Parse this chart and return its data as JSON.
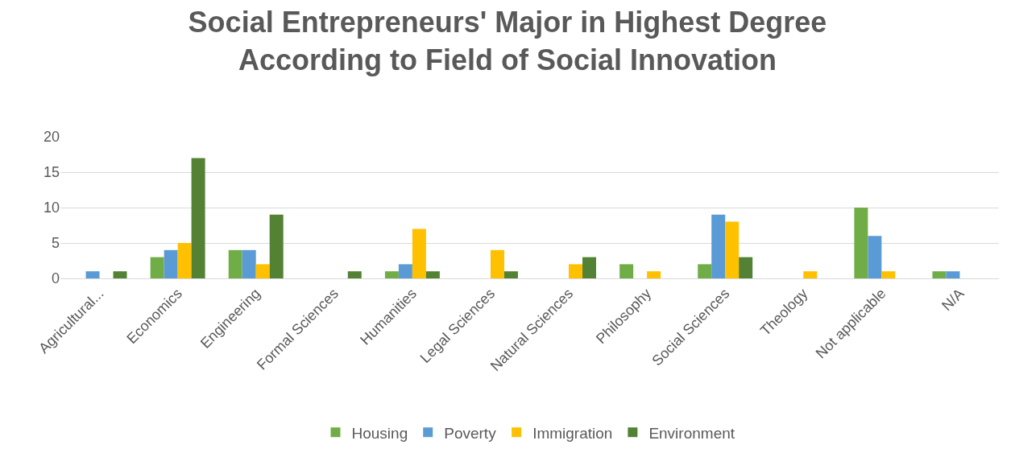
{
  "chart_data": {
    "type": "bar",
    "title": "Social Entrepreneurs' Major in Highest Degree\nAccording to Field of Social Innovation",
    "categories": [
      "Agricultural...",
      "Economics",
      "Engineering",
      "Formal Sciences",
      "Humanities",
      "Legal Sciences",
      "Natural Sciences",
      "Philosophy",
      "Social Sciences",
      "Theology",
      "Not applicable",
      "N/A"
    ],
    "series": [
      {
        "name": "Housing",
        "color": "#70ad47",
        "values": [
          0,
          3,
          4,
          0,
          1,
          0,
          0,
          2,
          2,
          0,
          10,
          1
        ]
      },
      {
        "name": "Poverty",
        "color": "#5b9bd5",
        "values": [
          1,
          4,
          4,
          0,
          2,
          0,
          0,
          0,
          9,
          0,
          6,
          1
        ]
      },
      {
        "name": "Immigration",
        "color": "#ffc000",
        "values": [
          0,
          5,
          2,
          0,
          7,
          4,
          2,
          1,
          8,
          1,
          1,
          0
        ]
      },
      {
        "name": "Environment",
        "color": "#548235",
        "values": [
          1,
          17,
          9,
          1,
          1,
          1,
          3,
          0,
          3,
          0,
          0,
          0
        ]
      }
    ],
    "ylim": [
      0,
      20
    ],
    "yticks": [
      0,
      5,
      10,
      15,
      20
    ],
    "grid": "y",
    "legend": "bottom"
  }
}
